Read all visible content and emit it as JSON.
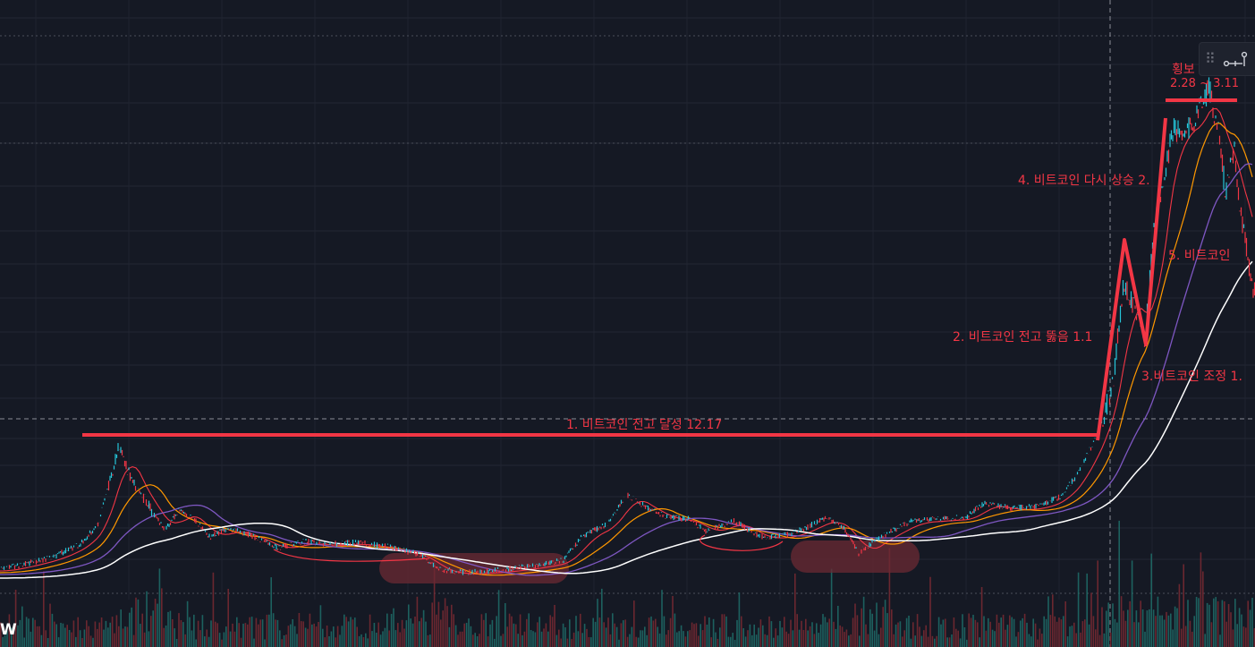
{
  "chart_data": {
    "type": "line",
    "title": "",
    "xlabel": "",
    "ylabel": "",
    "grid": true,
    "log_scale": true,
    "colors": {
      "background": "#151924",
      "price_up": "#26c6da",
      "price_down": "#f23645",
      "ma_fast": "#f23645",
      "ma_mid": "#ff9800",
      "ma_slow": "#7e57c2",
      "ma_long": "#ffffff",
      "annotation": "#f23645",
      "support_zone": "#6b2a33"
    },
    "annotations": [
      {
        "id": "ann1",
        "text": "1. 비트코인 전고 달성 12.17"
      },
      {
        "id": "ann2",
        "text": "2. 비트코인 전고 뚫음 1.1"
      },
      {
        "id": "ann3",
        "text": "3.비트코인 조정 1."
      },
      {
        "id": "ann4",
        "text": "4. 비트코인 다시 상승 2."
      },
      {
        "id": "ann5",
        "text": "5. 비트코인 "
      },
      {
        "id": "ann6",
        "text": "횡보"
      },
      {
        "id": "ann7",
        "text": "2.28 ~ 3.11"
      }
    ]
  },
  "toolbar": {
    "drag_handle_icon": "drag-dots-icon",
    "measure_icon": "measure-tool-icon"
  },
  "logo": {
    "text": "W"
  }
}
